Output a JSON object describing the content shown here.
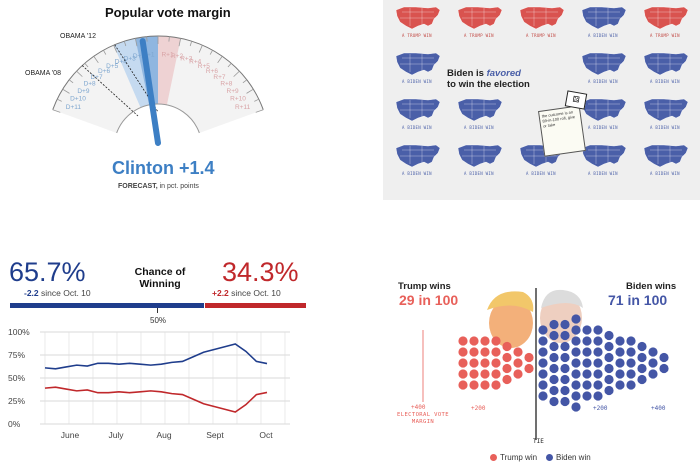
{
  "gauge": {
    "title": "Popular vote margin",
    "label_obama12": "OBAMA '12",
    "label_obama08": "OBAMA '08",
    "d_ticks": [
      "D+1",
      "D+2",
      "D+3",
      "D+4",
      "D+5",
      "D+6",
      "D+7",
      "D+8",
      "D+9",
      "D+10",
      "D+11"
    ],
    "r_ticks": [
      "R+1",
      "R+2",
      "R+3",
      "R+4",
      "R+5",
      "R+6",
      "R+7",
      "R+8",
      "R+9",
      "R+10",
      "R+11"
    ],
    "headline": "Clinton +1.4",
    "caption_bold": "FORECAST,",
    "caption_rest": " in pct. points",
    "needle_value": 1.4,
    "colors": {
      "dem": "#3f7bc1",
      "rep": "#d98b8f",
      "needle": "#3d7fc4"
    }
  },
  "maps": {
    "headline_pre": "Biden is ",
    "headline_em": "favored",
    "headline_post": " to win the election",
    "note_text": "the outcome is an 89-in-100 roll, give or take",
    "label_trump": "A TRUMP WIN",
    "label_biden": "A BIDEN WIN",
    "grid": [
      [
        "trump",
        "trump",
        "trump",
        "biden",
        "trump"
      ],
      [
        "biden",
        "biden",
        "biden",
        "biden",
        "biden"
      ],
      [
        "biden",
        "biden",
        "biden",
        "biden",
        "biden"
      ],
      [
        "biden",
        "biden",
        "biden",
        "biden",
        "biden"
      ]
    ],
    "colors": {
      "trump": "#d9534f",
      "biden": "#4a5fa8"
    }
  },
  "chance": {
    "left_pct": "65.7%",
    "left_change": "-2.2",
    "left_since": " since Oct. 10",
    "middle_title": "Chance of Winning",
    "right_pct": "34.3%",
    "right_change": "+2.2",
    "right_since": " since Oct. 10",
    "fifty": "50%",
    "y_ticks": [
      "100%",
      "75%",
      "50%",
      "25%",
      "0%"
    ],
    "x_labels": [
      "June",
      "July",
      "Aug",
      "Sept",
      "Oct"
    ],
    "colors": {
      "dem": "#1f3d8c",
      "rep": "#c0282b"
    }
  },
  "chart_data": {
    "type": "line",
    "title": "",
    "xlabel": "",
    "ylabel": "",
    "ylim": [
      0,
      100
    ],
    "x": [
      "Jun 1",
      "Jun 8",
      "Jun 15",
      "Jun 22",
      "Jun 29",
      "Jul 6",
      "Jul 13",
      "Jul 20",
      "Jul 27",
      "Aug 3",
      "Aug 10",
      "Aug 17",
      "Aug 24",
      "Aug 31",
      "Sep 7",
      "Sep 14",
      "Sep 21",
      "Sep 28",
      "Oct 3",
      "Oct 6",
      "Oct 10",
      "Oct 14"
    ],
    "series": [
      {
        "name": "",
        "values": [
          61,
          60,
          62,
          64,
          63,
          66,
          66,
          65,
          66,
          65,
          64,
          65,
          67,
          68,
          73,
          78,
          81,
          84,
          87,
          79,
          68,
          65.7
        ]
      },
      {
        "name": "",
        "values": [
          39,
          40,
          38,
          36,
          37,
          34,
          34,
          35,
          34,
          35,
          36,
          35,
          33,
          32,
          27,
          22,
          19,
          16,
          13,
          21,
          32,
          34.3
        ]
      }
    ]
  },
  "dots": {
    "trump_title": "Trump wins",
    "trump_num": "29 in 100",
    "biden_title": "Biden wins",
    "biden_num": "71 in 100",
    "axis_ev": "+400",
    "axis_caption": "ELECTORAL VOTE MARGIN",
    "tick_t200": "+200",
    "tick_b200": "+200",
    "tick_b400": "+400",
    "tie": "TIE",
    "legend_trump": "Trump win",
    "legend_biden": "Biden win",
    "trump_count": 29,
    "biden_count": 71,
    "colors": {
      "trump": "#e8605a",
      "biden": "#4456a6"
    }
  }
}
